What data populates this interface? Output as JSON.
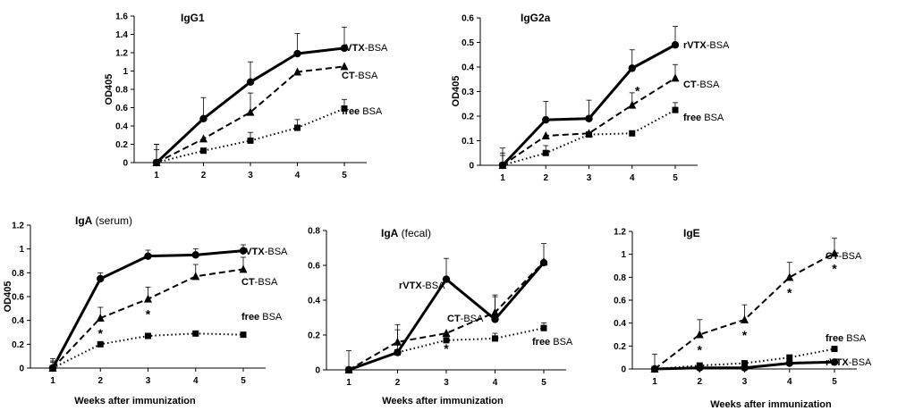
{
  "chart_data": [
    {
      "type": "line",
      "title": "IgG1",
      "xlabel": "",
      "ylabel": "OD405",
      "categories": [
        1,
        2,
        3,
        4,
        5
      ],
      "ylim": [
        0,
        1.6
      ],
      "ytick_step": 0.2,
      "yticks": [
        "0",
        "0.2",
        "0.4",
        "0.6",
        "0.8",
        "1",
        "1.2",
        "1.4",
        "1.6"
      ],
      "series": [
        {
          "name": "rVTX-BSA",
          "label_bold": "rVTX",
          "label_rest": "-BSA",
          "style": "solid",
          "marker": "circle",
          "values": [
            0,
            0.48,
            0.88,
            1.19,
            1.25
          ],
          "errors": [
            0.2,
            0.23,
            0.22,
            0.22,
            0.23
          ],
          "stars": []
        },
        {
          "name": "CT-BSA",
          "label_bold": "CT",
          "label_rest": "-BSA",
          "style": "dashed",
          "marker": "triangle",
          "values": [
            0,
            0.26,
            0.55,
            0.99,
            1.05
          ],
          "errors": [
            0.2,
            0,
            0.21,
            0,
            0
          ],
          "stars": []
        },
        {
          "name": "free BSA",
          "label_bold": "free",
          "label_rest": " BSA",
          "style": "dotted",
          "marker": "square",
          "values": [
            0,
            0.13,
            0.24,
            0.38,
            0.59
          ],
          "errors": [
            0.14,
            0,
            0.09,
            0.09,
            0.1
          ],
          "stars": []
        }
      ]
    },
    {
      "type": "line",
      "title": "IgG2a",
      "xlabel": "",
      "ylabel": "OD405",
      "categories": [
        1,
        2,
        3,
        4,
        5
      ],
      "ylim": [
        0,
        0.6
      ],
      "ytick_step": 0.1,
      "yticks": [
        "0",
        "0.1",
        "0.2",
        "0.3",
        "0.4",
        "0.5",
        "0.6"
      ],
      "series": [
        {
          "name": "rVTX-BSA",
          "label_bold": "rVTX",
          "label_rest": "-BSA",
          "style": "solid",
          "marker": "circle",
          "values": [
            0,
            0.185,
            0.19,
            0.395,
            0.49
          ],
          "errors": [
            0.07,
            0.075,
            0.075,
            0.075,
            0.075
          ],
          "stars": []
        },
        {
          "name": "CT-BSA",
          "label_bold": "CT",
          "label_rest": "-BSA",
          "style": "dashed",
          "marker": "triangle",
          "values": [
            0,
            0.12,
            0.13,
            0.245,
            0.355
          ],
          "errors": [
            0.05,
            0,
            0,
            0.05,
            0.055
          ],
          "stars": [
            false,
            false,
            false,
            true,
            false
          ]
        },
        {
          "name": "free BSA",
          "label_bold": "free",
          "label_rest": " BSA",
          "style": "dotted",
          "marker": "square",
          "values": [
            0,
            0.05,
            0.125,
            0.13,
            0.225
          ],
          "errors": [
            0.04,
            0.03,
            0,
            0,
            0.03
          ],
          "stars": []
        }
      ]
    },
    {
      "type": "line",
      "title": "IgA (serum)",
      "title_parts": [
        "IgA",
        " (serum)"
      ],
      "xlabel": "Weeks after immunization",
      "ylabel": "OD405",
      "categories": [
        1,
        2,
        3,
        4,
        5
      ],
      "ylim": [
        0,
        1.2
      ],
      "ytick_step": 0.2,
      "yticks": [
        "0",
        "0.2",
        "0.4",
        "0.6",
        "0.8",
        "1",
        "1.2"
      ],
      "series": [
        {
          "name": "rVTX-BSA",
          "label_bold": "rVTX",
          "label_rest": "-BSA",
          "style": "solid",
          "marker": "circle",
          "values": [
            0,
            0.75,
            0.94,
            0.95,
            0.985
          ],
          "errors": [
            0.08,
            0.05,
            0.05,
            0.05,
            0.05
          ],
          "stars": []
        },
        {
          "name": "CT-BSA",
          "label_bold": "CT",
          "label_rest": "-BSA",
          "style": "dashed",
          "marker": "triangle",
          "values": [
            0,
            0.42,
            0.58,
            0.77,
            0.83
          ],
          "errors": [
            0.06,
            0.09,
            0.1,
            0.1,
            0.1
          ],
          "stars": [
            false,
            true,
            true,
            false,
            false
          ]
        },
        {
          "name": "free BSA",
          "label_bold": "free",
          "label_rest": " BSA",
          "style": "dotted",
          "marker": "square",
          "values": [
            0,
            0.2,
            0.27,
            0.29,
            0.28
          ],
          "errors": [
            0.05,
            0,
            0,
            0,
            0
          ],
          "stars": []
        }
      ]
    },
    {
      "type": "line",
      "title": "IgA (fecal)",
      "title_parts": [
        "IgA",
        " (fecal)"
      ],
      "xlabel": "Weeks after immunization",
      "ylabel": "",
      "categories": [
        1,
        2,
        3,
        4,
        5
      ],
      "ylim": [
        0,
        0.8
      ],
      "ytick_step": 0.2,
      "yticks": [
        "0",
        "0.2",
        "0.4",
        "0.6",
        "0.8"
      ],
      "series": [
        {
          "name": "rVTX-BSA",
          "label_bold": "rVTX",
          "label_rest": "-BSA",
          "style": "solid",
          "marker": "circle",
          "values": [
            0,
            0.1,
            0.52,
            0.29,
            0.615
          ],
          "errors": [
            0.11,
            0.13,
            0.12,
            0.13,
            0.11
          ],
          "stars": []
        },
        {
          "name": "CT-BSA",
          "label_bold": "CT",
          "label_rest": "-BSA",
          "style": "dashed",
          "marker": "triangle",
          "values": [
            0,
            0.16,
            0.21,
            0.33,
            0.62
          ],
          "errors": [
            0,
            0.1,
            0,
            0.1,
            0
          ],
          "stars": [
            false,
            false,
            true,
            false,
            false
          ]
        },
        {
          "name": "free BSA",
          "label_bold": "free",
          "label_rest": " BSA",
          "style": "dotted",
          "marker": "square",
          "values": [
            0,
            0.1,
            0.17,
            0.18,
            0.24
          ],
          "errors": [
            0,
            0,
            0.04,
            0.03,
            0.03
          ],
          "stars": []
        }
      ]
    },
    {
      "type": "line",
      "title": "IgE",
      "xlabel": "Weeks after immunization",
      "ylabel": "",
      "categories": [
        1,
        2,
        3,
        4,
        5
      ],
      "ylim": [
        0,
        1.2
      ],
      "ytick_step": 0.2,
      "yticks": [
        "0",
        "0.2",
        "0.4",
        "0.6",
        "0.8",
        "1",
        "1.2"
      ],
      "series": [
        {
          "name": "CT-BSA",
          "label_bold": "CT",
          "label_rest": "-BSA",
          "style": "dashed",
          "marker": "triangle",
          "values": [
            0,
            0.3,
            0.43,
            0.8,
            1.01
          ],
          "errors": [
            0.13,
            0.13,
            0.13,
            0.13,
            0.13
          ],
          "stars": [
            false,
            true,
            true,
            true,
            true
          ]
        },
        {
          "name": "free BSA",
          "label_bold": "free",
          "label_rest": " BSA",
          "style": "dotted",
          "marker": "square",
          "values": [
            0,
            0.03,
            0.05,
            0.1,
            0.175
          ],
          "errors": [
            0,
            0,
            0,
            0,
            0
          ],
          "stars": []
        },
        {
          "name": "rVTX-BSA",
          "label_bold": "rVTX",
          "label_rest": "-BSA",
          "style": "solid",
          "marker": "circle",
          "values": [
            0,
            0.01,
            0.01,
            0.05,
            0.06
          ],
          "errors": [
            0,
            0,
            0,
            0,
            0
          ],
          "stars": []
        }
      ]
    }
  ],
  "marker_char": "*"
}
